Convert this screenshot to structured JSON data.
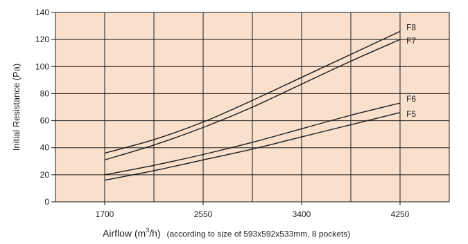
{
  "chart_data": {
    "type": "line",
    "x": [
      1700,
      2125,
      2550,
      2975,
      3400,
      3825,
      4250
    ],
    "xticks": [
      1700,
      2550,
      3400,
      4250
    ],
    "yticks": [
      0,
      20,
      40,
      60,
      80,
      100,
      120,
      140
    ],
    "xlim": [
      1275,
      4675
    ],
    "ylim": [
      0,
      140
    ],
    "grid": true,
    "ylabel": "Initial Resistance (Pa)",
    "xlabel_prefix": "Airflow (m",
    "xlabel_sup": "3",
    "xlabel_suffix": "/h)",
    "xlabel_note": "(according to size of 593x592x533mm, 8 pockets)",
    "series": [
      {
        "name": "F8",
        "values": [
          36,
          46,
          59,
          75,
          92,
          109,
          126
        ]
      },
      {
        "name": "F7",
        "values": [
          31,
          42,
          55,
          70,
          87,
          104,
          120
        ]
      },
      {
        "name": "F6",
        "values": [
          20,
          27,
          35,
          44,
          54,
          64,
          73
        ]
      },
      {
        "name": "F5",
        "values": [
          16,
          23,
          31,
          39,
          48,
          57,
          66
        ]
      }
    ],
    "colors": {
      "plot_background": "#f8e0cc",
      "grid": "#1a1a1a",
      "line": "#1a1a1a"
    }
  }
}
